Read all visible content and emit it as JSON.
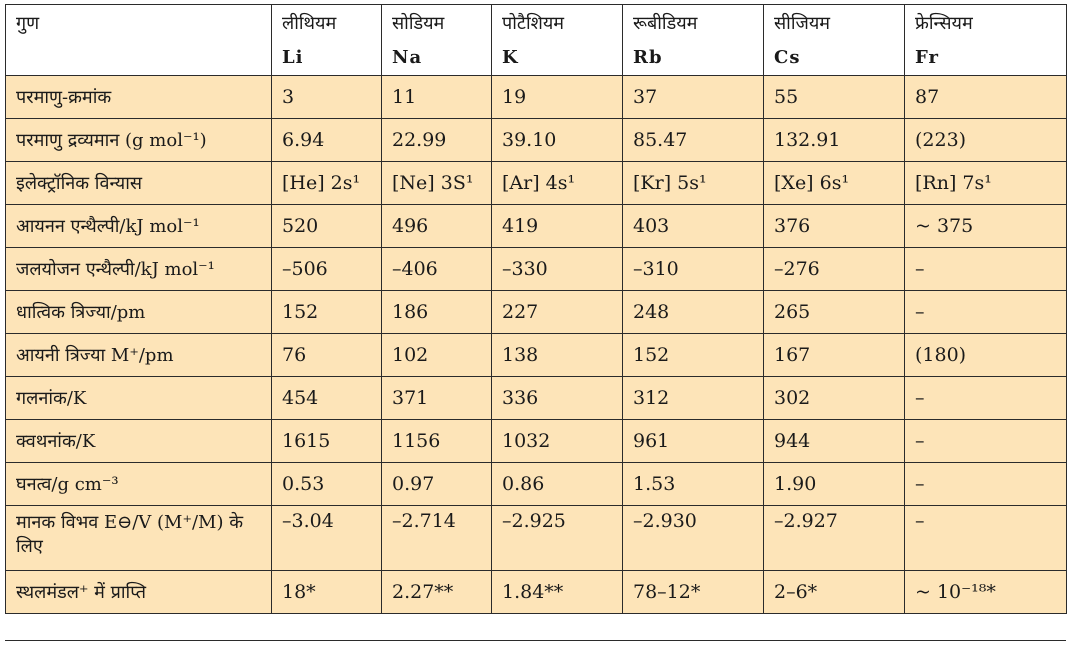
{
  "header": {
    "property": "गुण",
    "elements": [
      {
        "name": "लीथियम",
        "symbol": "Li"
      },
      {
        "name": "सोडियम",
        "symbol": "Na"
      },
      {
        "name": "पोटैशियम",
        "symbol": "K"
      },
      {
        "name": "रूबीडियम",
        "symbol": "Rb"
      },
      {
        "name": "सीजियम",
        "symbol": "Cs"
      },
      {
        "name": "फ्रेन्सियम",
        "symbol": "Fr"
      }
    ]
  },
  "rows": [
    {
      "label": "परमाणु-क्रमांक",
      "values": [
        "3",
        "11",
        "19",
        "37",
        "55",
        "87"
      ]
    },
    {
      "label": "परमाणु द्रव्यमान (g mol⁻¹)",
      "values": [
        "6.94",
        "22.99",
        "39.10",
        "85.47",
        "132.91",
        "(223)"
      ]
    },
    {
      "label": "इलेक्ट्रॉनिक विन्यास",
      "values": [
        "[He] 2s¹",
        "[Ne] 3S¹",
        "[Ar] 4s¹",
        "[Kr] 5s¹",
        "[Xe] 6s¹",
        "[Rn] 7s¹"
      ]
    },
    {
      "label": "आयनन एन्थैल्पी/kJ mol⁻¹",
      "values": [
        "520",
        "496",
        "419",
        "403",
        "376",
        "~ 375"
      ]
    },
    {
      "label": "जलयोजन एन्थैल्पी/kJ mol⁻¹",
      "values": [
        "–506",
        "–406",
        "–330",
        "–310",
        "–276",
        "–"
      ]
    },
    {
      "label": "धात्विक त्रिज्या/pm",
      "values": [
        "152",
        "186",
        "227",
        "248",
        "265",
        "–"
      ]
    },
    {
      "label": "आयनी त्रिज्या M⁺/pm",
      "values": [
        "76",
        "102",
        "138",
        "152",
        "167",
        "(180)"
      ]
    },
    {
      "label": "गलनांक/K",
      "values": [
        "454",
        "371",
        "336",
        "312",
        "302",
        "–"
      ]
    },
    {
      "label": "क्वथनांक/K",
      "values": [
        "1615",
        "1156",
        "1032",
        "961",
        "944",
        "–"
      ]
    },
    {
      "label": "घनत्व/g cm⁻³",
      "values": [
        "0.53",
        "0.97",
        "0.86",
        "1.53",
        "1.90",
        "–"
      ]
    },
    {
      "label": "मानक विभव E⊖/V (M⁺/M) के लिए",
      "values": [
        "–3.04",
        "–2.714",
        "–2.925",
        "–2.930",
        "–2.927",
        "–"
      ]
    },
    {
      "label": "स्थलमंडल⁺ में प्राप्ति",
      "values": [
        "18*",
        "2.27**",
        "1.84**",
        "78–12*",
        "2–6*",
        "~ 10⁻¹⁸*"
      ]
    }
  ]
}
